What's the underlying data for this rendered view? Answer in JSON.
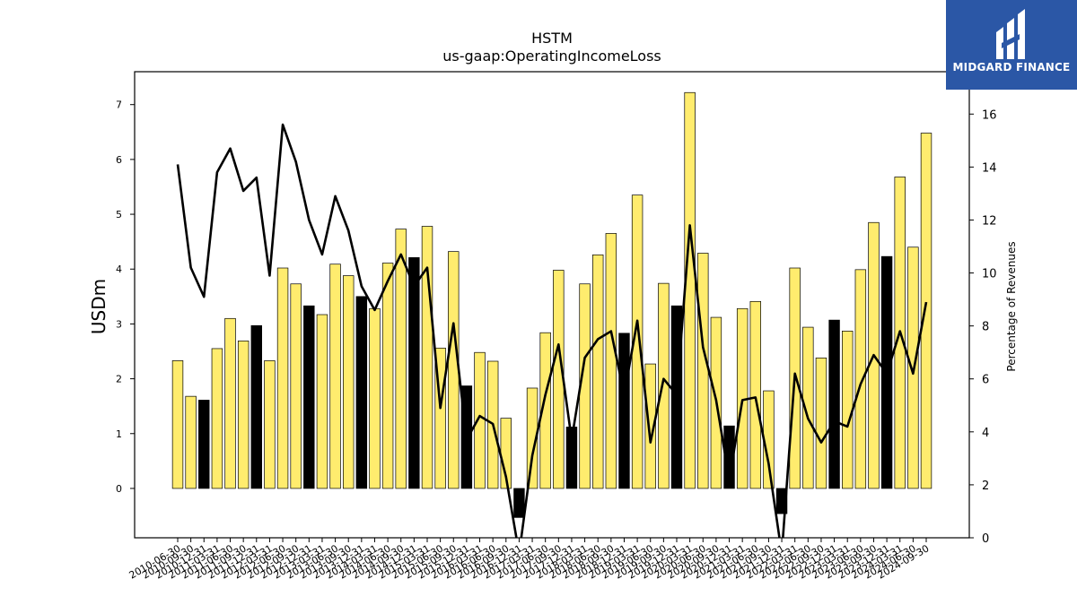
{
  "chart_data": {
    "type": "bar",
    "title": "HSTM",
    "subtitle": "us-gaap:OperatingIncomeLoss",
    "ylabel": "USDm",
    "y2label": "Percentage of Revenues",
    "ylim": [
      -0.9,
      7.6
    ],
    "y2lim": [
      0,
      17.6
    ],
    "yticks": [
      0,
      1,
      2,
      3,
      4,
      5,
      6,
      7
    ],
    "y2ticks": [
      0,
      2,
      4,
      6,
      8,
      10,
      12,
      14,
      16
    ],
    "categories": [
      "2010-06-30",
      "2010-09-30",
      "2010-12-31",
      "2011-03-31",
      "2011-06-30",
      "2011-09-30",
      "2011-12-31",
      "2012-03-31",
      "2012-06-30",
      "2012-09-30",
      "2012-12-31",
      "2013-03-31",
      "2013-06-30",
      "2013-09-30",
      "2013-12-31",
      "2014-03-31",
      "2014-06-30",
      "2014-09-30",
      "2014-12-31",
      "2015-03-31",
      "2015-06-30",
      "2015-09-30",
      "2015-12-31",
      "2016-03-31",
      "2016-06-30",
      "2016-09-30",
      "2016-12-31",
      "2017-03-31",
      "2017-06-30",
      "2017-09-30",
      "2017-12-31",
      "2018-03-31",
      "2018-06-30",
      "2018-09-30",
      "2018-12-31",
      "2019-03-31",
      "2019-06-30",
      "2019-09-30",
      "2019-12-31",
      "2020-03-31",
      "2020-06-30",
      "2020-09-30",
      "2020-12-31",
      "2021-03-31",
      "2021-06-30",
      "2021-09-30",
      "2021-12-31",
      "2022-03-31",
      "2022-06-30",
      "2022-09-30",
      "2022-12-31",
      "2023-03-31",
      "2023-06-30",
      "2023-09-30",
      "2023-12-31",
      "2024-03-31",
      "2024-06-30",
      "2024-09-30"
    ],
    "series": [
      {
        "type": "bar",
        "values": [
          2.33,
          1.68,
          1.61,
          2.55,
          3.1,
          2.69,
          2.97,
          2.33,
          4.02,
          3.73,
          3.33,
          3.17,
          4.09,
          3.88,
          3.5,
          3.28,
          4.11,
          4.73,
          4.21,
          4.78,
          2.56,
          4.32,
          1.87,
          2.48,
          2.32,
          1.28,
          -0.53,
          1.83,
          2.84,
          3.98,
          1.12,
          3.73,
          4.26,
          4.65,
          2.83,
          5.35,
          2.27,
          3.74,
          3.33,
          7.22,
          4.29,
          3.12,
          1.14,
          3.28,
          3.41,
          1.78,
          -0.46,
          4.02,
          2.94,
          2.38,
          3.07,
          2.87,
          3.99,
          4.85,
          4.23,
          5.68,
          4.4,
          6.48
        ],
        "highlight": [
          false,
          false,
          true,
          false,
          false,
          false,
          true,
          false,
          false,
          false,
          true,
          false,
          false,
          false,
          true,
          false,
          false,
          false,
          true,
          false,
          false,
          false,
          true,
          false,
          false,
          false,
          true,
          false,
          false,
          false,
          true,
          false,
          false,
          false,
          true,
          false,
          false,
          false,
          true,
          false,
          false,
          false,
          true,
          false,
          false,
          false,
          true,
          false,
          false,
          false,
          true,
          false,
          false,
          false,
          true,
          false,
          false,
          false
        ],
        "colors": {
          "normal": "#ffec6e",
          "highlight": "#000000"
        }
      },
      {
        "type": "line",
        "axis": "right",
        "values": [
          14.1,
          10.2,
          9.1,
          13.8,
          14.7,
          13.1,
          13.6,
          9.9,
          15.6,
          14.2,
          12.0,
          10.7,
          12.9,
          11.6,
          9.5,
          8.6,
          9.7,
          10.7,
          9.5,
          10.2,
          4.9,
          8.1,
          3.7,
          4.6,
          4.3,
          2.3,
          -0.6,
          3.1,
          5.4,
          7.3,
          3.7,
          6.8,
          7.5,
          7.8,
          5.4,
          8.2,
          3.6,
          6.0,
          5.4,
          11.8,
          7.2,
          5.2,
          2.2,
          5.2,
          5.3,
          2.8,
          -0.6,
          6.2,
          4.5,
          3.6,
          4.4,
          4.2,
          5.8,
          6.9,
          6.2,
          7.8,
          6.2,
          8.9
        ],
        "color": "#000000"
      }
    ],
    "grid": false
  },
  "logo": {
    "text": "MIDGARD FINANCE",
    "background": "#2b57a6"
  }
}
